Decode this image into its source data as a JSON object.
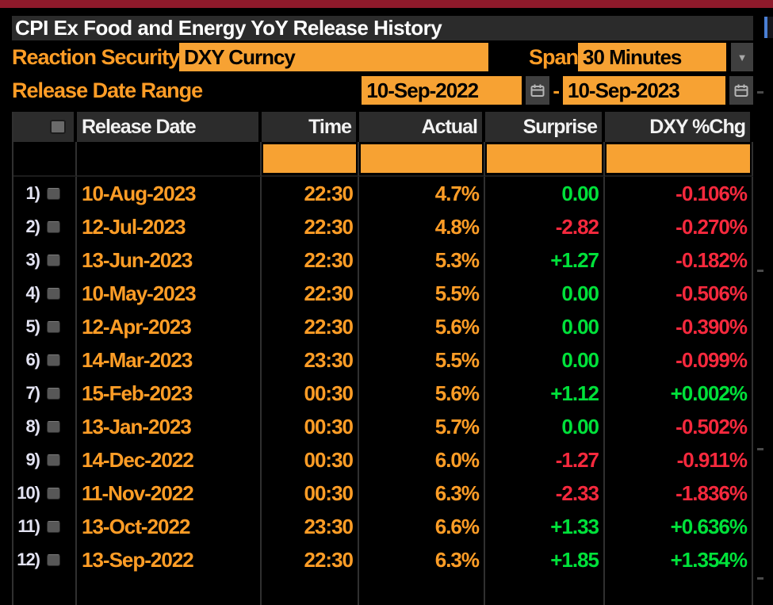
{
  "title": "CPI Ex Food and Energy YoY Release History",
  "controls": {
    "reaction_security_label": "Reaction Security",
    "reaction_security_value": "DXY Curncy",
    "span_label": "Span",
    "span_value": "30 Minutes",
    "date_range_label": "Release Date Range",
    "date_from": "10-Sep-2022",
    "date_separator": "-",
    "date_to": "10-Sep-2023"
  },
  "table": {
    "columns": [
      "Release Date",
      "Time",
      "Actual",
      "Surprise",
      "DXY %Chg"
    ],
    "rows": [
      {
        "num": "1)",
        "date": "10-Aug-2023",
        "time": "22:30",
        "actual": "4.7%",
        "surprise": "0.00",
        "surprise_color": "green",
        "chg": "-0.106%",
        "chg_color": "red"
      },
      {
        "num": "2)",
        "date": "12-Jul-2023",
        "time": "22:30",
        "actual": "4.8%",
        "surprise": "-2.82",
        "surprise_color": "red",
        "chg": "-0.270%",
        "chg_color": "red"
      },
      {
        "num": "3)",
        "date": "13-Jun-2023",
        "time": "22:30",
        "actual": "5.3%",
        "surprise": "+1.27",
        "surprise_color": "green",
        "chg": "-0.182%",
        "chg_color": "red"
      },
      {
        "num": "4)",
        "date": "10-May-2023",
        "time": "22:30",
        "actual": "5.5%",
        "surprise": "0.00",
        "surprise_color": "green",
        "chg": "-0.506%",
        "chg_color": "red"
      },
      {
        "num": "5)",
        "date": "12-Apr-2023",
        "time": "22:30",
        "actual": "5.6%",
        "surprise": "0.00",
        "surprise_color": "green",
        "chg": "-0.390%",
        "chg_color": "red"
      },
      {
        "num": "6)",
        "date": "14-Mar-2023",
        "time": "23:30",
        "actual": "5.5%",
        "surprise": "0.00",
        "surprise_color": "green",
        "chg": "-0.099%",
        "chg_color": "red"
      },
      {
        "num": "7)",
        "date": "15-Feb-2023",
        "time": "00:30",
        "actual": "5.6%",
        "surprise": "+1.12",
        "surprise_color": "green",
        "chg": "+0.002%",
        "chg_color": "green"
      },
      {
        "num": "8)",
        "date": "13-Jan-2023",
        "time": "00:30",
        "actual": "5.7%",
        "surprise": "0.00",
        "surprise_color": "green",
        "chg": "-0.502%",
        "chg_color": "red"
      },
      {
        "num": "9)",
        "date": "14-Dec-2022",
        "time": "00:30",
        "actual": "6.0%",
        "surprise": "-1.27",
        "surprise_color": "red",
        "chg": "-0.911%",
        "chg_color": "red"
      },
      {
        "num": "10)",
        "date": "11-Nov-2022",
        "time": "00:30",
        "actual": "6.3%",
        "surprise": "-2.33",
        "surprise_color": "red",
        "chg": "-1.836%",
        "chg_color": "red"
      },
      {
        "num": "11)",
        "date": "13-Oct-2022",
        "time": "23:30",
        "actual": "6.6%",
        "surprise": "+1.33",
        "surprise_color": "green",
        "chg": "+0.636%",
        "chg_color": "green"
      },
      {
        "num": "12)",
        "date": "13-Sep-2022",
        "time": "22:30",
        "actual": "6.3%",
        "surprise": "+1.85",
        "surprise_color": "green",
        "chg": "+1.354%",
        "chg_color": "green"
      }
    ]
  },
  "colors": {
    "topbar": "#8e1a2b",
    "amber_text": "#ff9d26",
    "orange_box": "#f7a233",
    "positive": "#00e13a",
    "negative": "#f6293d",
    "header_bg": "#2c2c2c"
  }
}
